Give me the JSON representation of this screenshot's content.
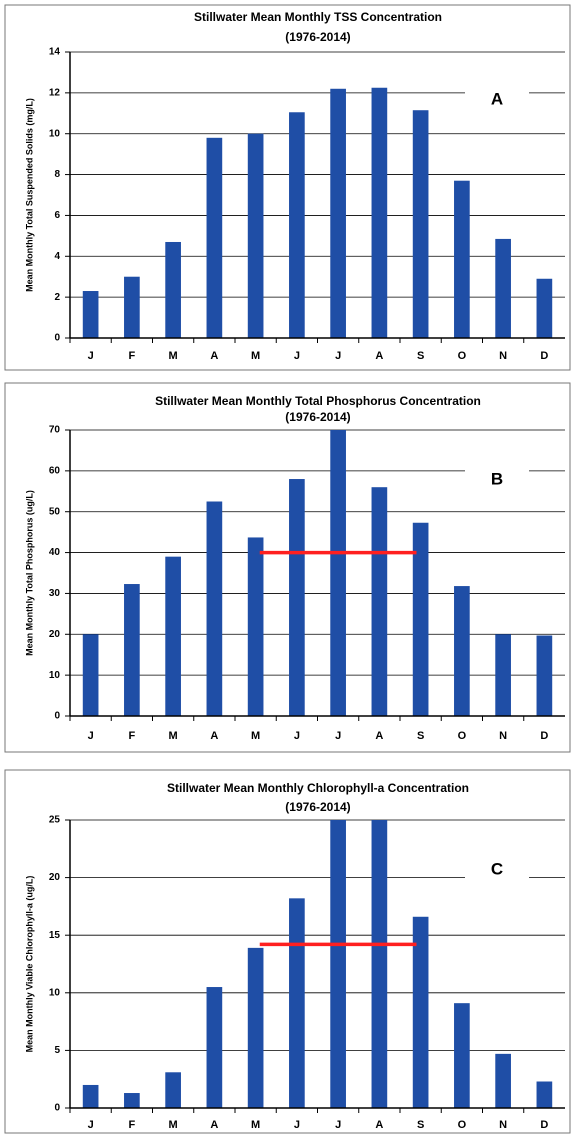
{
  "chart_data": [
    {
      "type": "bar",
      "title": "Stillwater Mean Monthly TSS Concentration",
      "subtitle": "(1976-2014)",
      "ylabel": "Mean Monthly Total Suspended Solids (mg/L)",
      "annotation": "A",
      "categories": [
        "J",
        "F",
        "M",
        "A",
        "M",
        "J",
        "J",
        "A",
        "S",
        "O",
        "N",
        "D"
      ],
      "values": [
        2.3,
        3.0,
        4.7,
        9.8,
        10.0,
        11.05,
        12.2,
        12.25,
        11.15,
        7.7,
        4.85,
        2.9
      ],
      "color": "#1f4ea6",
      "ylim": [
        0,
        14
      ],
      "yticks": [
        0,
        2,
        4,
        6,
        8,
        10,
        12,
        14
      ],
      "grid": true
    },
    {
      "type": "bar",
      "title": "Stillwater Mean Monthly Total Phosphorus Concentration",
      "subtitle": "(1976-2014)",
      "ylabel": "Mean Monthly Total Phosphorus (ug/L)",
      "annotation": "B",
      "categories": [
        "J",
        "F",
        "M",
        "A",
        "M",
        "J",
        "J",
        "A",
        "S",
        "O",
        "N",
        "D"
      ],
      "values": [
        20,
        32.3,
        39,
        52.5,
        43.7,
        58,
        70,
        56,
        47.3,
        31.8,
        20,
        19.7
      ],
      "color": "#1f4ea6",
      "ylim": [
        0,
        70
      ],
      "yticks": [
        0,
        10,
        20,
        30,
        40,
        50,
        60,
        70
      ],
      "grid": true,
      "threshold": 40,
      "threshold_color": "#ff2020"
    },
    {
      "type": "bar",
      "title": "Stillwater Mean Monthly Chlorophyll-a Concentration",
      "subtitle": "(1976-2014)",
      "ylabel": "Mean Monthly Viable Chlorophyll-a (ug/L)",
      "annotation": "C",
      "categories": [
        "J",
        "F",
        "M",
        "A",
        "M",
        "J",
        "J",
        "A",
        "S",
        "O",
        "N",
        "D"
      ],
      "values": [
        2.0,
        1.3,
        3.1,
        10.5,
        13.9,
        18.2,
        25,
        25,
        16.6,
        9.1,
        4.7,
        2.3
      ],
      "color": "#1f4ea6",
      "ylim": [
        0,
        25
      ],
      "yticks": [
        0,
        5,
        10,
        15,
        20,
        25
      ],
      "grid": true,
      "threshold": 14.2,
      "threshold_color": "#ff2020"
    }
  ]
}
